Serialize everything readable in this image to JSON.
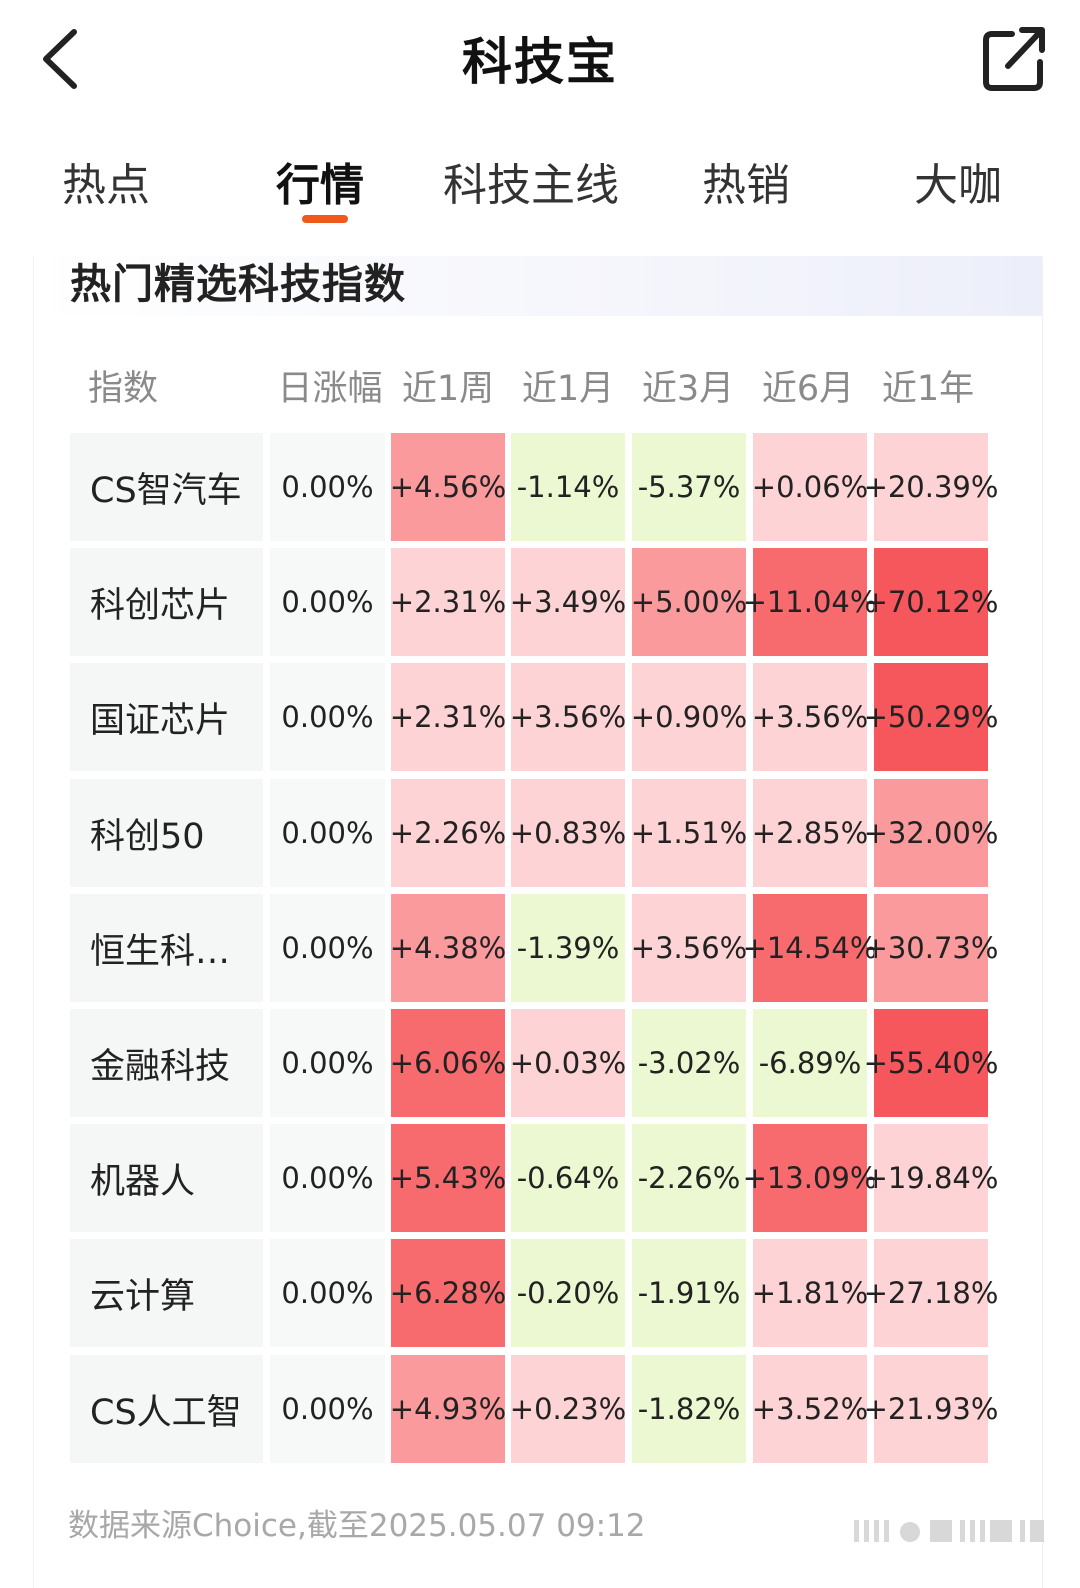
{
  "header": {
    "title": "科技宝",
    "back_icon": "back-arrow-icon",
    "share_icon": "share-icon"
  },
  "tabs": [
    {
      "label": "热点",
      "active": false
    },
    {
      "label": "行情",
      "active": true
    },
    {
      "label": "科技主线",
      "active": false
    },
    {
      "label": "热销",
      "active": false
    },
    {
      "label": "大咖",
      "active": false
    }
  ],
  "section": {
    "title": "热门精选科技指数"
  },
  "table": {
    "columns": [
      "指数",
      "日涨幅",
      "近1周",
      "近1月",
      "近3月",
      "近6月",
      "近1年"
    ],
    "rows": [
      {
        "name": "CS智汽车",
        "values": [
          "0.00%",
          "+4.56%",
          "-1.14%",
          "-5.37%",
          "+0.06%",
          "+20.39%"
        ]
      },
      {
        "name": "科创芯片",
        "values": [
          "0.00%",
          "+2.31%",
          "+3.49%",
          "+5.00%",
          "+11.04%",
          "+70.12%"
        ]
      },
      {
        "name": "国证芯片",
        "values": [
          "0.00%",
          "+2.31%",
          "+3.56%",
          "+0.90%",
          "+3.56%",
          "+50.29%"
        ]
      },
      {
        "name": "科创50",
        "values": [
          "0.00%",
          "+2.26%",
          "+0.83%",
          "+1.51%",
          "+2.85%",
          "+32.00%"
        ]
      },
      {
        "name": "恒生科…",
        "values": [
          "0.00%",
          "+4.38%",
          "-1.39%",
          "+3.56%",
          "+14.54%",
          "+30.73%"
        ]
      },
      {
        "name": "金融科技",
        "values": [
          "0.00%",
          "+6.06%",
          "+0.03%",
          "-3.02%",
          "-6.89%",
          "+55.40%"
        ]
      },
      {
        "name": "机器人",
        "values": [
          "0.00%",
          "+5.43%",
          "-0.64%",
          "-2.26%",
          "+13.09%",
          "+19.84%"
        ]
      },
      {
        "name": "云计算",
        "values": [
          "0.00%",
          "+6.28%",
          "-0.20%",
          "-1.91%",
          "+1.81%",
          "+27.18%"
        ]
      },
      {
        "name": "CS人工智",
        "values": [
          "0.00%",
          "+4.93%",
          "+0.23%",
          "-1.82%",
          "+3.52%",
          "+21.93%"
        ]
      }
    ]
  },
  "footer": {
    "source": "数据来源Choice,截至2025.05.07 09:12"
  },
  "colors": {
    "accent": "#ef5a1a",
    "positive_light": "#fdd3d5",
    "positive_mid": "#fa9a9c",
    "positive_strong": "#f76b6f",
    "positive_max": "#f5575d",
    "negative": "#ebf8d2"
  }
}
